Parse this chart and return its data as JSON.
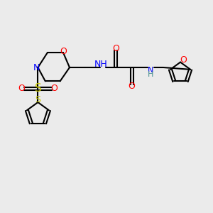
{
  "bg_color": "#ebebeb",
  "bond_color": "#000000",
  "atom_colors": {
    "O": "#ff0000",
    "N": "#0000ff",
    "S": "#cccc00",
    "H": "#4a9090",
    "C": "#000000"
  },
  "figsize": [
    3.0,
    3.0
  ],
  "dpi": 100
}
